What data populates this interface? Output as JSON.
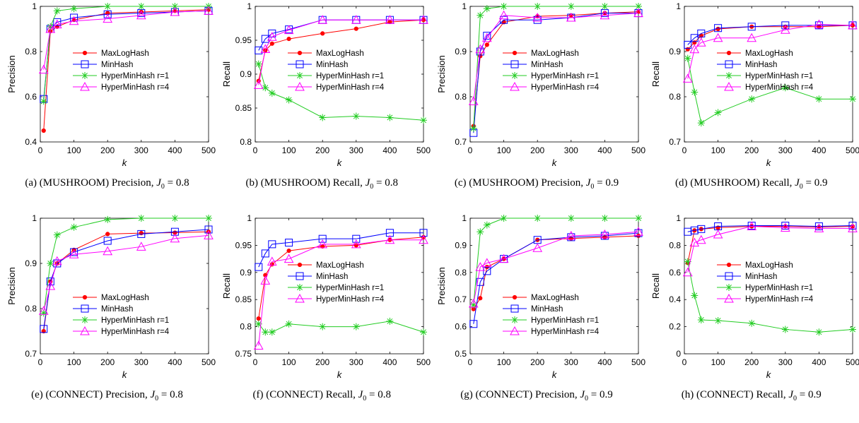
{
  "legend_labels": [
    "MaxLogHash",
    "MinHash",
    "HyperMinHash r=1",
    "HyperMinHash r=4"
  ],
  "series_colors": {
    "MaxLogHash": "#ff0000",
    "MinHash": "#0000ff",
    "HyperMinHash r=1": "#22cc22",
    "HyperMinHash r=4": "#ff00ff"
  },
  "series_markers": {
    "MaxLogHash": "dot",
    "MinHash": "square",
    "HyperMinHash r=1": "asterisk",
    "HyperMinHash r=4": "triangle"
  },
  "chart_data": [
    {
      "id": "a",
      "type": "line",
      "caption": {
        "prefix": "(a) (MUSHROOM) Precision, ",
        "symbol": "J",
        "sub": "0",
        "suffix": " = 0.8"
      },
      "xlabel": "k",
      "ylabel": "Precision",
      "xlim": [
        0,
        500
      ],
      "ylim": [
        0.4,
        1
      ],
      "xticks": [
        0,
        100,
        200,
        300,
        400,
        500
      ],
      "yticks": [
        0.4,
        0.6,
        0.8,
        1
      ],
      "ytick_labels": [
        "0.4",
        "0.6",
        "0.8",
        "1"
      ],
      "x": [
        10,
        30,
        50,
        100,
        200,
        300,
        400,
        500
      ],
      "legend": {
        "position": "center-right"
      },
      "series": [
        {
          "name": "MaxLogHash",
          "values": [
            0.45,
            0.89,
            0.91,
            0.94,
            0.97,
            0.975,
            0.98,
            0.985
          ]
        },
        {
          "name": "MinHash",
          "values": [
            0.59,
            0.9,
            0.93,
            0.95,
            0.965,
            0.97,
            0.975,
            0.98
          ]
        },
        {
          "name": "HyperMinHash r=1",
          "values": [
            0.58,
            0.91,
            0.98,
            0.99,
            1.0,
            1.0,
            1.0,
            1.0
          ]
        },
        {
          "name": "HyperMinHash r=4",
          "values": [
            0.72,
            0.9,
            0.92,
            0.935,
            0.945,
            0.96,
            0.975,
            0.98
          ]
        }
      ]
    },
    {
      "id": "b",
      "type": "line",
      "caption": {
        "prefix": "(b) (MUSHROOM) Recall, ",
        "symbol": "J",
        "sub": "0",
        "suffix": " = 0.8"
      },
      "xlabel": "k",
      "ylabel": "Recall",
      "xlim": [
        0,
        500
      ],
      "ylim": [
        0.8,
        1
      ],
      "xticks": [
        0,
        100,
        200,
        300,
        400,
        500
      ],
      "yticks": [
        0.8,
        0.85,
        0.9,
        0.95,
        1
      ],
      "ytick_labels": [
        "0.8",
        "0.85",
        "0.9",
        "0.95",
        "1"
      ],
      "x": [
        10,
        30,
        50,
        100,
        200,
        300,
        400,
        500
      ],
      "legend": {
        "position": "center-right"
      },
      "series": [
        {
          "name": "MaxLogHash",
          "values": [
            0.89,
            0.935,
            0.945,
            0.952,
            0.96,
            0.967,
            0.977,
            0.98
          ]
        },
        {
          "name": "MinHash",
          "values": [
            0.935,
            0.952,
            0.96,
            0.966,
            0.98,
            0.98,
            0.98,
            0.98
          ]
        },
        {
          "name": "HyperMinHash r=1",
          "values": [
            0.915,
            0.88,
            0.872,
            0.862,
            0.836,
            0.838,
            0.836,
            0.832
          ]
        },
        {
          "name": "HyperMinHash r=4",
          "values": [
            0.884,
            0.937,
            0.955,
            0.965,
            0.98,
            0.98,
            0.98,
            0.98
          ]
        }
      ]
    },
    {
      "id": "c",
      "type": "line",
      "caption": {
        "prefix": "(c) (MUSHROOM) Precision, ",
        "symbol": "J",
        "sub": "0",
        "suffix": " = 0.9"
      },
      "xlabel": "k",
      "ylabel": "Precision",
      "xlim": [
        0,
        500
      ],
      "ylim": [
        0.7,
        1
      ],
      "xticks": [
        0,
        100,
        200,
        300,
        400,
        500
      ],
      "yticks": [
        0.7,
        0.8,
        0.9,
        1
      ],
      "ytick_labels": [
        "0.7",
        "0.8",
        "0.9",
        "1"
      ],
      "x": [
        10,
        30,
        50,
        100,
        200,
        300,
        400,
        500
      ],
      "legend": {
        "position": "center-right"
      },
      "series": [
        {
          "name": "MaxLogHash",
          "values": [
            0.735,
            0.89,
            0.915,
            0.965,
            0.978,
            0.98,
            0.985,
            0.988
          ]
        },
        {
          "name": "MinHash",
          "values": [
            0.72,
            0.9,
            0.935,
            0.97,
            0.97,
            0.975,
            0.985,
            0.985
          ]
        },
        {
          "name": "HyperMinHash r=1",
          "values": [
            0.73,
            0.98,
            0.995,
            1.0,
            1.0,
            1.0,
            1.0,
            1.0
          ]
        },
        {
          "name": "HyperMinHash r=4",
          "values": [
            0.79,
            0.905,
            0.93,
            0.98,
            0.975,
            0.975,
            0.98,
            0.985
          ]
        }
      ]
    },
    {
      "id": "d",
      "type": "line",
      "caption": {
        "prefix": "(d) (MUSHROOM) Recall, ",
        "symbol": "J",
        "sub": "0",
        "suffix": " = 0.9"
      },
      "xlabel": "k",
      "ylabel": "Recall",
      "xlim": [
        0,
        500
      ],
      "ylim": [
        0.7,
        1
      ],
      "xticks": [
        0,
        100,
        200,
        300,
        400,
        500
      ],
      "yticks": [
        0.7,
        0.8,
        0.9,
        1
      ],
      "ytick_labels": [
        "0.7",
        "0.8",
        "0.9",
        "1"
      ],
      "x": [
        10,
        30,
        50,
        100,
        200,
        300,
        400,
        500
      ],
      "legend": {
        "position": "center-right"
      },
      "series": [
        {
          "name": "MaxLogHash",
          "values": [
            0.905,
            0.92,
            0.935,
            0.95,
            0.955,
            0.955,
            0.955,
            0.958
          ]
        },
        {
          "name": "MinHash",
          "values": [
            0.915,
            0.93,
            0.94,
            0.952,
            0.955,
            0.958,
            0.958,
            0.958
          ]
        },
        {
          "name": "HyperMinHash r=1",
          "values": [
            0.885,
            0.81,
            0.742,
            0.765,
            0.795,
            0.82,
            0.795,
            0.795
          ]
        },
        {
          "name": "HyperMinHash r=4",
          "values": [
            0.84,
            0.905,
            0.92,
            0.93,
            0.93,
            0.948,
            0.96,
            0.958
          ]
        }
      ]
    },
    {
      "id": "e",
      "type": "line",
      "caption": {
        "prefix": "(e) (CONNECT) Precision, ",
        "symbol": "J",
        "sub": "0",
        "suffix": " = 0.8"
      },
      "xlabel": "k",
      "ylabel": "Precision",
      "xlim": [
        0,
        500
      ],
      "ylim": [
        0.7,
        1
      ],
      "xticks": [
        0,
        100,
        200,
        300,
        400,
        500
      ],
      "yticks": [
        0.7,
        0.8,
        0.9,
        1
      ],
      "ytick_labels": [
        "0.7",
        "0.8",
        "0.9",
        "1"
      ],
      "x": [
        10,
        30,
        50,
        100,
        200,
        300,
        400,
        500
      ],
      "legend": {
        "position": "lower-right"
      },
      "series": [
        {
          "name": "MaxLogHash",
          "values": [
            0.75,
            0.86,
            0.9,
            0.93,
            0.965,
            0.967,
            0.968,
            0.97
          ]
        },
        {
          "name": "MinHash",
          "values": [
            0.755,
            0.86,
            0.9,
            0.925,
            0.95,
            0.965,
            0.97,
            0.975
          ]
        },
        {
          "name": "HyperMinHash r=1",
          "values": [
            0.79,
            0.9,
            0.963,
            0.98,
            0.997,
            1.0,
            1.0,
            1.0
          ]
        },
        {
          "name": "HyperMinHash r=4",
          "values": [
            0.795,
            0.85,
            0.905,
            0.92,
            0.927,
            0.937,
            0.955,
            0.962
          ]
        }
      ]
    },
    {
      "id": "f",
      "type": "line",
      "caption": {
        "prefix": "(f) (CONNECT) Recall, ",
        "symbol": "J",
        "sub": "0",
        "suffix": " = 0.8"
      },
      "xlabel": "k",
      "ylabel": "Recall",
      "xlim": [
        0,
        500
      ],
      "ylim": [
        0.75,
        1
      ],
      "xticks": [
        0,
        100,
        200,
        300,
        400,
        500
      ],
      "yticks": [
        0.75,
        0.8,
        0.85,
        0.9,
        0.95,
        1
      ],
      "ytick_labels": [
        "0.75",
        "0.8",
        "0.85",
        "0.9",
        "0.95",
        "1"
      ],
      "x": [
        10,
        30,
        50,
        100,
        200,
        300,
        400,
        500
      ],
      "legend": {
        "position": "center-right"
      },
      "series": [
        {
          "name": "MaxLogHash",
          "values": [
            0.815,
            0.895,
            0.915,
            0.94,
            0.948,
            0.95,
            0.96,
            0.965
          ]
        },
        {
          "name": "MinHash",
          "values": [
            0.91,
            0.935,
            0.952,
            0.955,
            0.962,
            0.962,
            0.973,
            0.973
          ]
        },
        {
          "name": "HyperMinHash r=1",
          "values": [
            0.805,
            0.79,
            0.79,
            0.805,
            0.8,
            0.8,
            0.81,
            0.79
          ]
        },
        {
          "name": "HyperMinHash r=4",
          "values": [
            0.765,
            0.885,
            0.92,
            0.925,
            0.952,
            0.952,
            0.96,
            0.96
          ]
        }
      ]
    },
    {
      "id": "g",
      "type": "line",
      "caption": {
        "prefix": "(g) (CONNECT) Precision, ",
        "symbol": "J",
        "sub": "0",
        "suffix": " = 0.9"
      },
      "xlabel": "k",
      "ylabel": "Precision",
      "xlim": [
        0,
        500
      ],
      "ylim": [
        0.5,
        1
      ],
      "xticks": [
        0,
        100,
        200,
        300,
        400,
        500
      ],
      "yticks": [
        0.5,
        0.6,
        0.7,
        0.8,
        0.9,
        1
      ],
      "ytick_labels": [
        "0.5",
        "0.6",
        "0.7",
        "0.8",
        "0.9",
        "1"
      ],
      "x": [
        10,
        30,
        50,
        100,
        200,
        300,
        400,
        500
      ],
      "legend": {
        "position": "lower-right"
      },
      "series": [
        {
          "name": "MaxLogHash",
          "values": [
            0.665,
            0.705,
            0.82,
            0.85,
            0.92,
            0.925,
            0.93,
            0.935
          ]
        },
        {
          "name": "MinHash",
          "values": [
            0.61,
            0.765,
            0.805,
            0.85,
            0.92,
            0.93,
            0.935,
            0.945
          ]
        },
        {
          "name": "HyperMinHash r=1",
          "values": [
            0.68,
            0.95,
            0.975,
            1.0,
            1.0,
            1.0,
            1.0,
            1.0
          ]
        },
        {
          "name": "HyperMinHash r=4",
          "values": [
            0.685,
            0.82,
            0.835,
            0.85,
            0.89,
            0.935,
            0.94,
            0.95
          ]
        }
      ]
    },
    {
      "id": "h",
      "type": "line",
      "caption": {
        "prefix": "(h) (CONNECT) Recall, ",
        "symbol": "J",
        "sub": "0",
        "suffix": " = 0.9"
      },
      "xlabel": "k",
      "ylabel": "Recall",
      "xlim": [
        0,
        500
      ],
      "ylim": [
        0,
        1
      ],
      "xticks": [
        0,
        100,
        200,
        300,
        400,
        500
      ],
      "yticks": [
        0,
        0.2,
        0.4,
        0.6,
        0.8,
        1
      ],
      "ytick_labels": [
        "0",
        "0.2",
        "0.4",
        "0.6",
        "0.8",
        "1"
      ],
      "x": [
        10,
        30,
        50,
        100,
        200,
        300,
        400,
        500
      ],
      "legend": {
        "position": "center-right"
      },
      "series": [
        {
          "name": "MaxLogHash",
          "values": [
            0.67,
            0.91,
            0.92,
            0.93,
            0.94,
            0.94,
            0.935,
            0.94
          ]
        },
        {
          "name": "MinHash",
          "values": [
            0.9,
            0.91,
            0.92,
            0.94,
            0.945,
            0.945,
            0.94,
            0.945
          ]
        },
        {
          "name": "HyperMinHash r=1",
          "values": [
            0.68,
            0.43,
            0.25,
            0.245,
            0.225,
            0.18,
            0.16,
            0.18
          ]
        },
        {
          "name": "HyperMinHash r=4",
          "values": [
            0.6,
            0.82,
            0.84,
            0.88,
            0.94,
            0.93,
            0.925,
            0.925
          ]
        }
      ]
    }
  ]
}
